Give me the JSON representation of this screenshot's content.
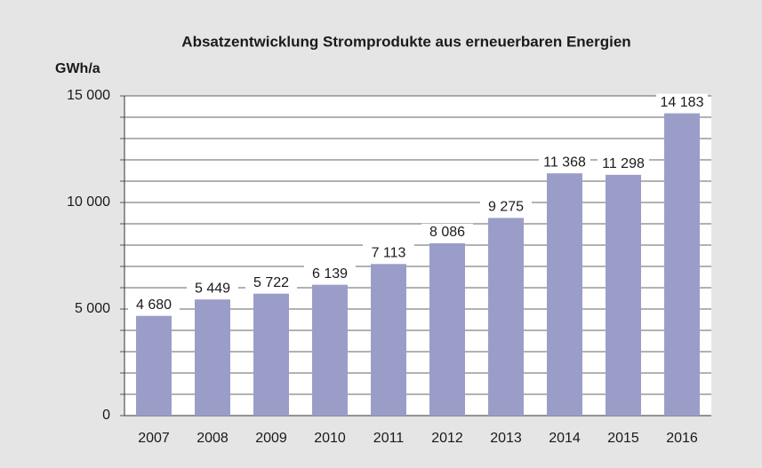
{
  "chart_data": {
    "type": "bar",
    "title": "Absatzentwicklung Stromprodukte aus erneuerbaren Energien",
    "y_axis_label": "GWh/a",
    "categories": [
      "2007",
      "2008",
      "2009",
      "2010",
      "2011",
      "2012",
      "2013",
      "2014",
      "2015",
      "2016"
    ],
    "values": [
      4680,
      5449,
      5722,
      6139,
      7113,
      8086,
      9275,
      11368,
      11298,
      14183
    ],
    "value_labels": [
      "4 680",
      "5 449",
      "5 722",
      "6 139",
      "7 113",
      "8 086",
      "9 275",
      "11 368",
      "11 298",
      "14 183"
    ],
    "color": "#9b9dc9",
    "ylim": [
      0,
      15000
    ],
    "yticks": [
      0,
      {
        "value": 5000,
        "label": "5 000"
      },
      {
        "value": 10000,
        "label": "10 000"
      },
      {
        "value": 15000,
        "label": "15 000"
      }
    ],
    "minor_yticks": [
      1000,
      2000,
      3000,
      4000,
      6000,
      7000,
      8000,
      9000,
      11000,
      12000,
      13000,
      14000
    ],
    "grid": true
  }
}
